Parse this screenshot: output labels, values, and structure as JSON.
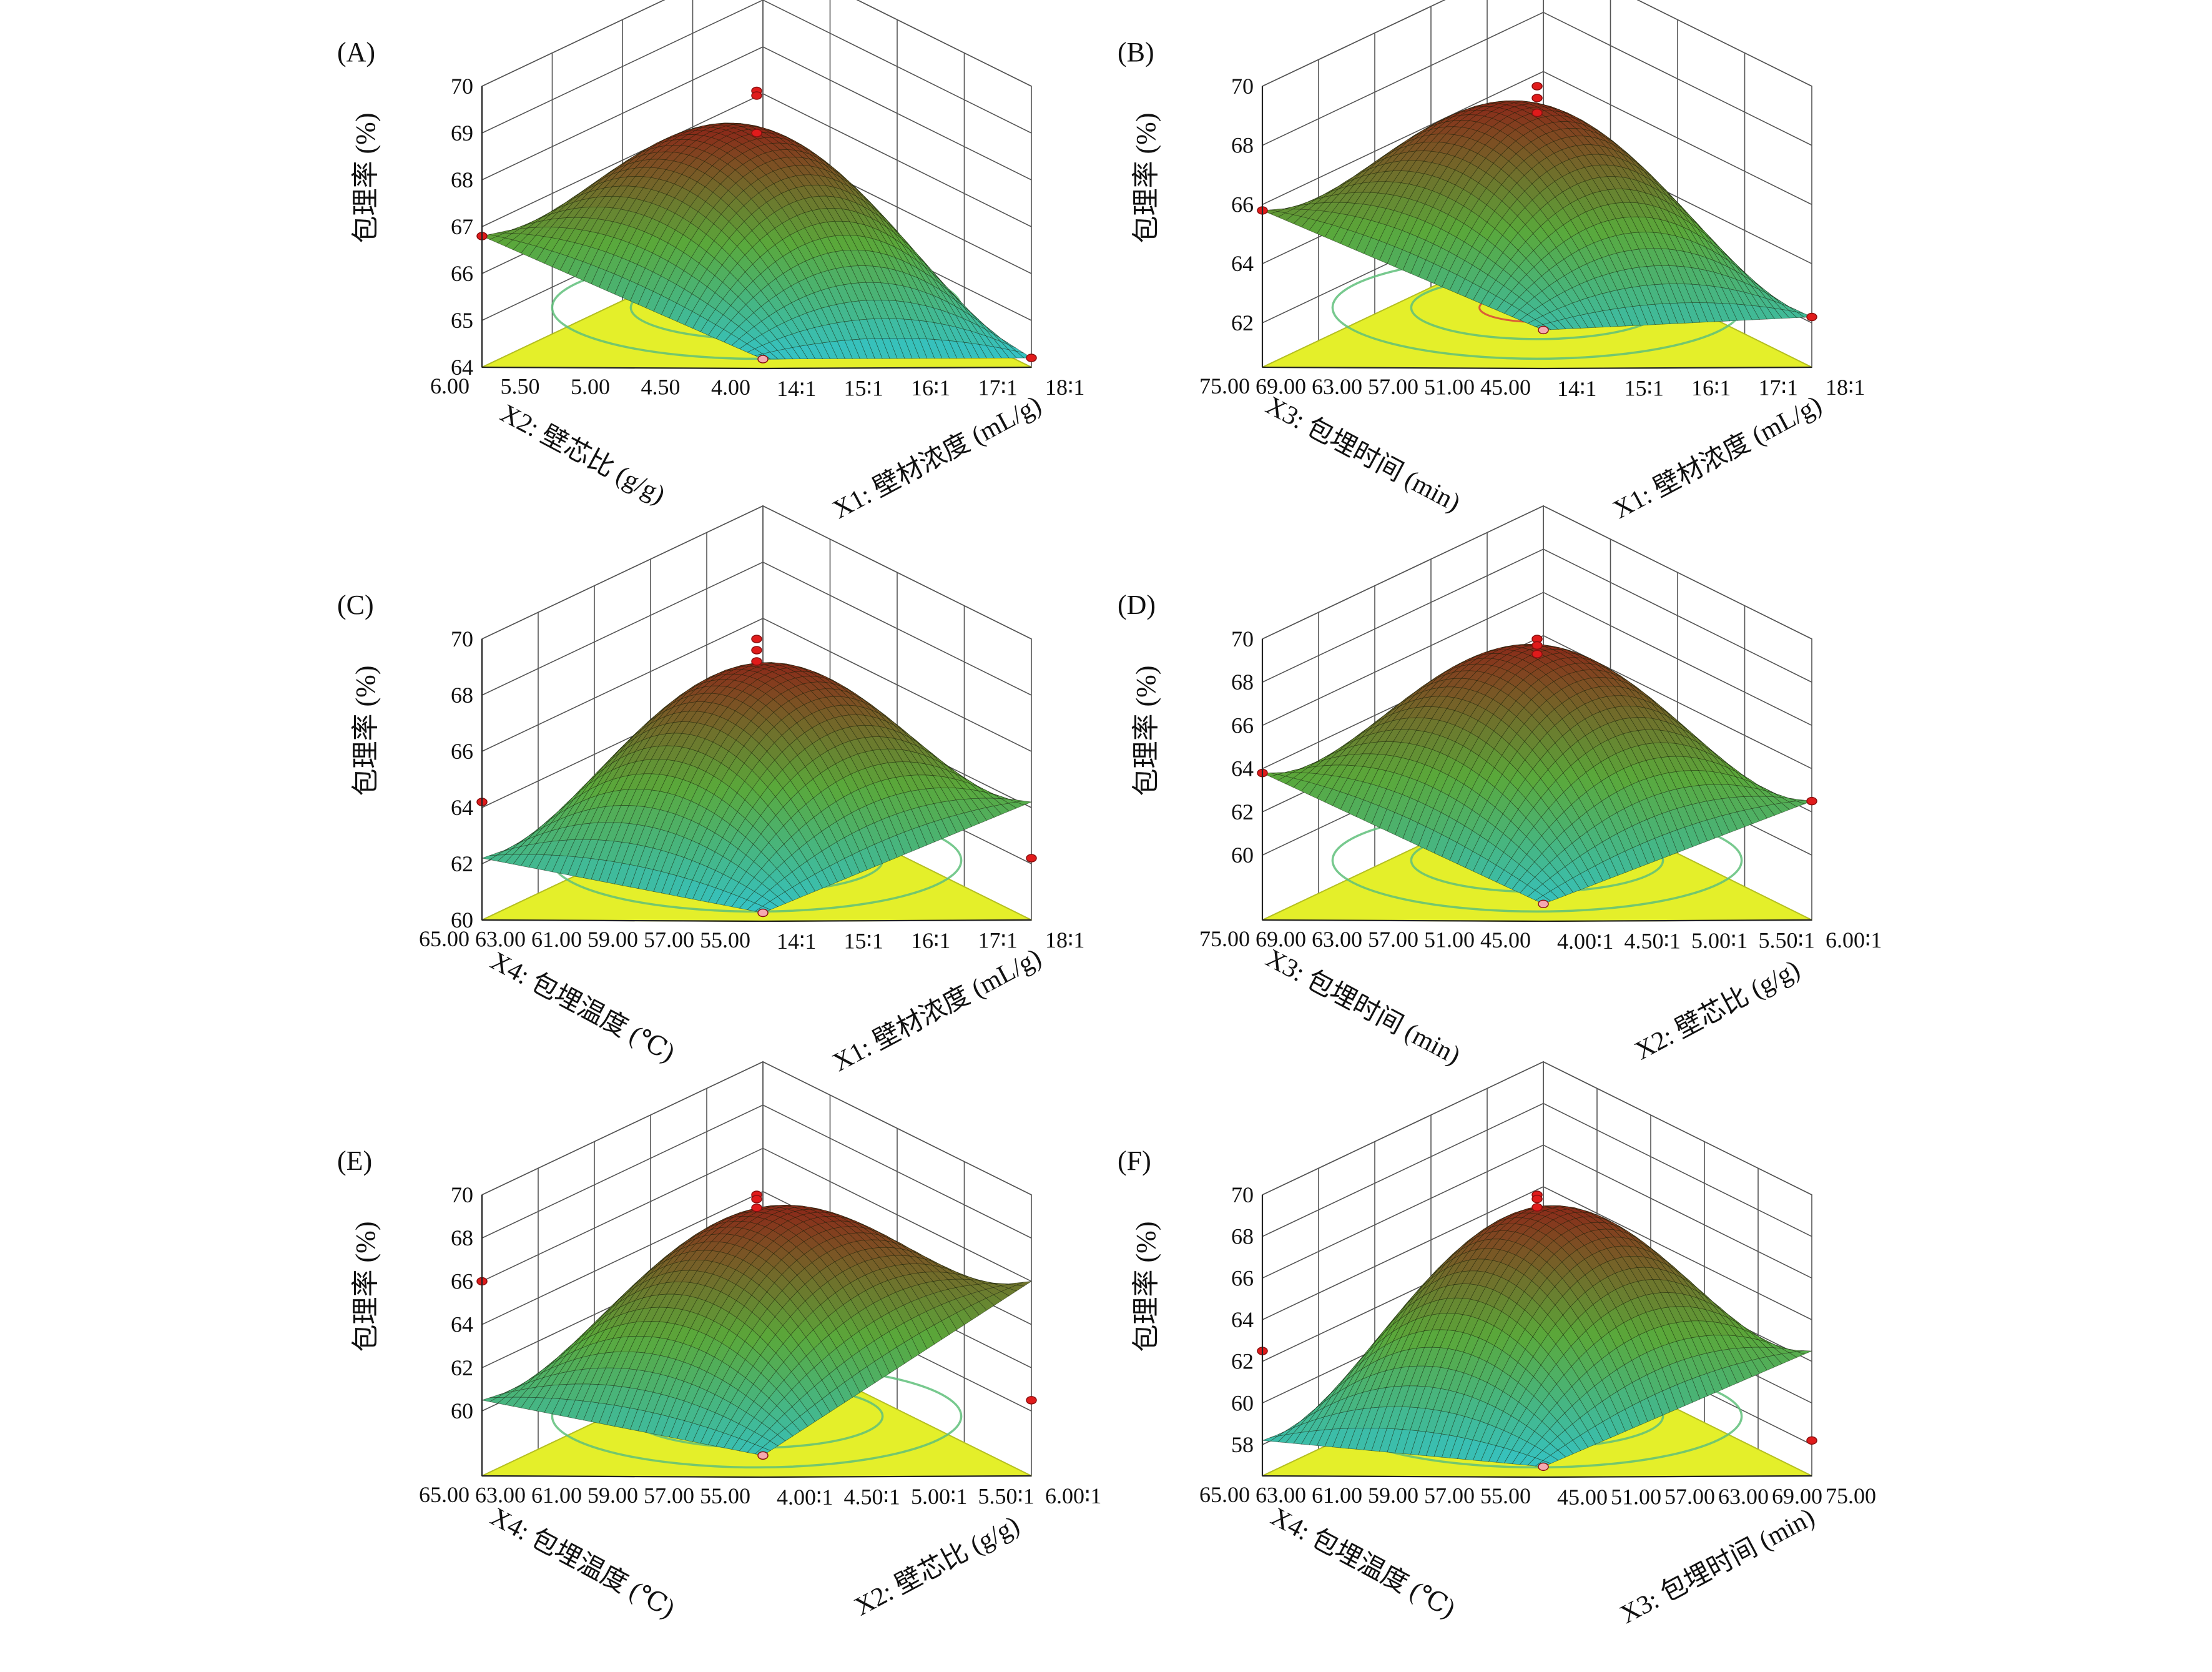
{
  "figure": {
    "chart_data": [
      {
        "type": "surface",
        "panel": "(A)",
        "zlabel": "包理率 (%)",
        "zticks": [
          "64",
          "65",
          "66",
          "67",
          "68",
          "69",
          "70"
        ],
        "zlim": [
          64,
          70
        ],
        "right_axis": {
          "label": "X1: 壁材浓度 (mL/g)",
          "ticks": [
            "14∶1",
            "15∶1",
            "16∶1",
            "17∶1",
            "18∶1"
          ]
        },
        "left_axis": {
          "label": "X2: 壁芯比 (g/g)",
          "ticks": [
            "4.00",
            "4.50",
            "5.00",
            "5.50",
            "6.00"
          ]
        },
        "corner_values": {
          "front": 64.2,
          "left": 66.8,
          "right": 64.2,
          "back": 68.0
        },
        "peak": 69.0,
        "design_points": [
          69.9,
          69.8,
          69.0,
          66.8,
          64.2,
          64.2
        ]
      },
      {
        "type": "surface",
        "panel": "(B)",
        "zlabel": "包理率 (%)",
        "zticks": [
          "62",
          "64",
          "66",
          "68",
          "70"
        ],
        "zlim": [
          60.5,
          70
        ],
        "right_axis": {
          "label": "X1: 壁材浓度 (mL/g)",
          "ticks": [
            "14∶1",
            "15∶1",
            "16∶1",
            "17∶1",
            "18∶1"
          ]
        },
        "left_axis": {
          "label": "X3: 包埋时间 (min)",
          "ticks": [
            "45.00",
            "51.00",
            "57.00",
            "63.00",
            "69.00",
            "75.00"
          ]
        },
        "corner_values": {
          "front": 61.8,
          "left": 65.8,
          "right": 62.2,
          "back": 66.5
        },
        "peak": 69.3,
        "design_points": [
          70.0,
          69.6,
          69.1,
          65.8,
          62.2,
          61.8
        ]
      },
      {
        "type": "surface",
        "panel": "(C)",
        "zlabel": "包理率 (%)",
        "zticks": [
          "60",
          "62",
          "64",
          "66",
          "68",
          "70"
        ],
        "zlim": [
          60,
          70
        ],
        "right_axis": {
          "label": "X1: 壁材浓度 (mL/g)",
          "ticks": [
            "14∶1",
            "15∶1",
            "16∶1",
            "17∶1",
            "18∶1"
          ]
        },
        "left_axis": {
          "label": "X4: 包埋温度 (℃)",
          "ticks": [
            "55.00",
            "57.00",
            "59.00",
            "61.00",
            "63.00",
            "65.00"
          ]
        },
        "corner_values": {
          "front": 60.3,
          "left": 62.2,
          "right": 64.2,
          "back": 65.5
        },
        "peak": 69.0,
        "design_points": [
          70.0,
          69.6,
          69.2,
          64.2,
          62.2,
          60.3
        ]
      },
      {
        "type": "surface",
        "panel": "(D)",
        "zlabel": "包理率 (%)",
        "zticks": [
          "60",
          "62",
          "64",
          "66",
          "68",
          "70"
        ],
        "zlim": [
          57,
          70
        ],
        "right_axis": {
          "label": "X2: 壁芯比 (g/g)",
          "ticks": [
            "4.00∶1",
            "4.50∶1",
            "5.00∶1",
            "5.50∶1",
            "6.00∶1"
          ]
        },
        "left_axis": {
          "label": "X3: 包埋时间 (min)",
          "ticks": [
            "45.00",
            "51.00",
            "57.00",
            "63.00",
            "69.00",
            "75.00"
          ]
        },
        "corner_values": {
          "front": 57.8,
          "left": 63.8,
          "right": 62.5,
          "back": 64.0
        },
        "peak": 69.6,
        "design_points": [
          70.0,
          69.7,
          69.3,
          63.8,
          62.5,
          57.8
        ]
      },
      {
        "type": "surface",
        "panel": "(E)",
        "zlabel": "包理率 (%)",
        "zticks": [
          "60",
          "62",
          "64",
          "66",
          "68",
          "70"
        ],
        "zlim": [
          57,
          70
        ],
        "right_axis": {
          "label": "X2: 壁芯比 (g/g)",
          "ticks": [
            "4.00∶1",
            "4.50∶1",
            "5.00∶1",
            "5.50∶1",
            "6.00∶1"
          ]
        },
        "left_axis": {
          "label": "X4: 包埋温度 (℃)",
          "ticks": [
            "55.00",
            "57.00",
            "59.00",
            "61.00",
            "63.00",
            "65.00"
          ]
        },
        "corner_values": {
          "front": 58.0,
          "left": 60.5,
          "right": 66.0,
          "back": 64.5
        },
        "peak": 69.2,
        "design_points": [
          70.0,
          69.8,
          69.4,
          66.0,
          60.5,
          58.0
        ]
      },
      {
        "type": "surface",
        "panel": "(F)",
        "zlabel": "包理率 (%)",
        "zticks": [
          "58",
          "60",
          "62",
          "64",
          "66",
          "68",
          "70"
        ],
        "zlim": [
          56.5,
          70
        ],
        "right_axis": {
          "label": "X3: 包埋时间 (min)",
          "ticks": [
            "45.00",
            "51.00",
            "57.00",
            "63.00",
            "69.00",
            "75.00"
          ]
        },
        "left_axis": {
          "label": "X4: 包埋温度 (℃)",
          "ticks": [
            "55.00",
            "57.00",
            "59.00",
            "61.00",
            "63.00",
            "65.00"
          ]
        },
        "corner_values": {
          "front": 57.0,
          "left": 58.2,
          "right": 62.5,
          "back": 63.0
        },
        "peak": 69.3,
        "design_points": [
          70.0,
          69.8,
          69.4,
          62.5,
          58.2,
          57.0
        ]
      }
    ]
  },
  "colors": {
    "floor": "#e4ef2a",
    "floor_edge": "#b5c020",
    "contour_inner": "#d9433a",
    "contour_outer": "#5fbf7a",
    "surface_low": "#35c2c2",
    "surface_mid": "#5aa83a",
    "surface_high": "#8a2c1a",
    "point_fill": "#e01b1b",
    "point_fill_low": "#f4a9b0"
  }
}
